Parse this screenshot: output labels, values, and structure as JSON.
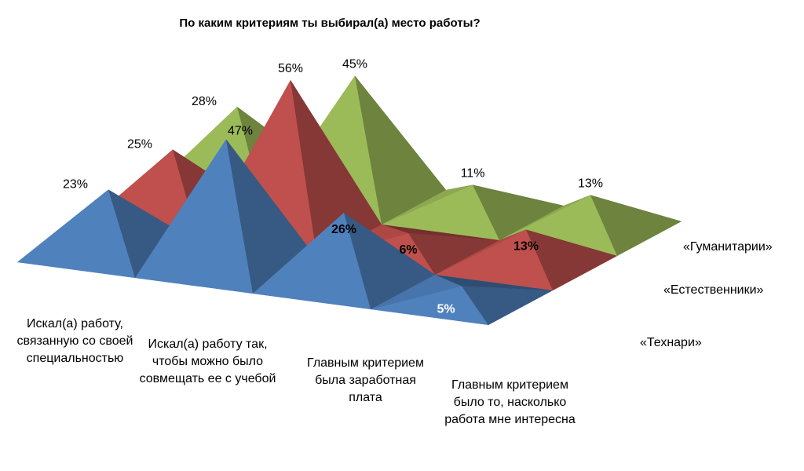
{
  "chart_data": {
    "type": "pyramid3d",
    "title": "По каким критериям ты выбирал(а) место работы?",
    "categories": [
      "Искал(а) работу, связанную со своей специальностью",
      "Искал(а) работу так, чтобы можно было совмещать ее с учебой",
      "Главным критерием была заработная плата",
      "Главным критерием было то, насколько работа мне интересна"
    ],
    "series": [
      {
        "name": "«Технари»",
        "color": "#4f81bd",
        "values": [
          23,
          47,
          26,
          5
        ],
        "value_labels": [
          "23%",
          "47%",
          "26%",
          "5%"
        ]
      },
      {
        "name": "«Естественники»",
        "color": "#c0504d",
        "values": [
          25,
          56,
          6,
          13
        ],
        "value_labels": [
          "25%",
          "56%",
          "6%",
          "13%"
        ]
      },
      {
        "name": "«Гуманитарии»",
        "color": "#9bbb59",
        "values": [
          28,
          45,
          11,
          13
        ],
        "value_labels": [
          "28%",
          "45%",
          "11%",
          "13%"
        ]
      }
    ]
  }
}
